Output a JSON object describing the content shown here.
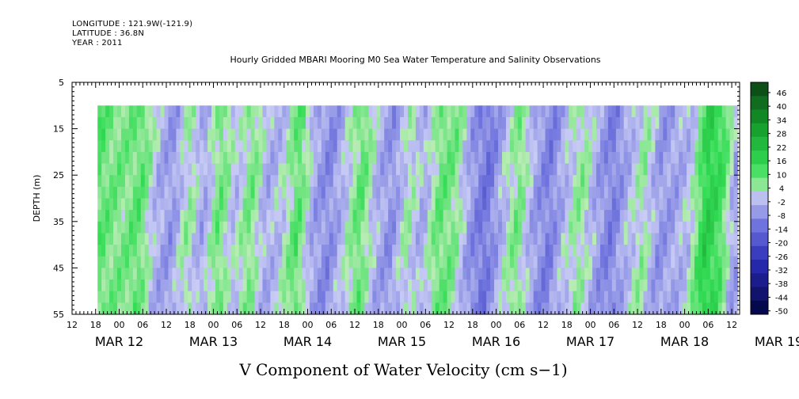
{
  "header": {
    "longitude": "LONGITUDE : 121.9W(-121.9)",
    "latitude": "LATITUDE : 36.8N",
    "year": "YEAR : 2011"
  },
  "chart_data": {
    "type": "heatmap",
    "title": "Hourly Gridded MBARI Mooring M0 Sea Water Temperature and Salinity Observations",
    "xlabel": "V Component of Water Velocity (cm s−1)",
    "ylabel": "DEPTH (m)",
    "ylim": [
      5,
      55
    ],
    "y_inverted": true,
    "y_ticks": [
      "5",
      "15",
      "25",
      "35",
      "45",
      "55"
    ],
    "x_hour_ticks": [
      "12",
      "18",
      "00",
      "06",
      "12",
      "18",
      "00",
      "06",
      "12",
      "18",
      "00",
      "06",
      "12",
      "18",
      "00",
      "06",
      "12",
      "18",
      "00",
      "06",
      "12",
      "18",
      "00",
      "06",
      "12",
      "18",
      "00",
      "06",
      "12"
    ],
    "x_date_labels": [
      "MAR 12",
      "MAR 13",
      "MAR 14",
      "MAR 15",
      "MAR 16",
      "MAR 17",
      "MAR 18",
      "MAR 19"
    ],
    "x_range_hours": [
      0,
      170
    ],
    "data_start_hour": 6.5,
    "data_end_hour": 169,
    "depth_range_of_data": [
      10,
      55
    ],
    "colorbar": {
      "levels": [
        "46",
        "40",
        "34",
        "28",
        "22",
        "16",
        "10",
        "4",
        "-2",
        "-8",
        "-14",
        "-20",
        "-26",
        "-32",
        "-38",
        "-44",
        "-50"
      ],
      "min": -50,
      "max": 50
    },
    "value_profile": [
      {
        "t": 6.5,
        "v": 9
      },
      {
        "t": 10,
        "v": 6
      },
      {
        "t": 14,
        "v": 5
      },
      {
        "t": 18,
        "v": 8
      },
      {
        "t": 22,
        "v": -4
      },
      {
        "t": 26,
        "v": -8
      },
      {
        "t": 30,
        "v": 3
      },
      {
        "t": 34,
        "v": -6
      },
      {
        "t": 38,
        "v": 7
      },
      {
        "t": 42,
        "v": -3
      },
      {
        "t": 46,
        "v": 6
      },
      {
        "t": 50,
        "v": -5
      },
      {
        "t": 54,
        "v": -2
      },
      {
        "t": 58,
        "v": 9
      },
      {
        "t": 62,
        "v": -6
      },
      {
        "t": 66,
        "v": -10
      },
      {
        "t": 70,
        "v": -2
      },
      {
        "t": 74,
        "v": 8
      },
      {
        "t": 78,
        "v": -4
      },
      {
        "t": 82,
        "v": -9
      },
      {
        "t": 86,
        "v": 2
      },
      {
        "t": 90,
        "v": -5
      },
      {
        "t": 94,
        "v": 7
      },
      {
        "t": 98,
        "v": 5
      },
      {
        "t": 102,
        "v": -8
      },
      {
        "t": 106,
        "v": -14
      },
      {
        "t": 110,
        "v": -4
      },
      {
        "t": 114,
        "v": 6
      },
      {
        "t": 118,
        "v": -6
      },
      {
        "t": 122,
        "v": -12
      },
      {
        "t": 126,
        "v": -3
      },
      {
        "t": 130,
        "v": 4
      },
      {
        "t": 134,
        "v": -6
      },
      {
        "t": 138,
        "v": -12
      },
      {
        "t": 142,
        "v": -4
      },
      {
        "t": 146,
        "v": 3
      },
      {
        "t": 150,
        "v": -8
      },
      {
        "t": 154,
        "v": -6
      },
      {
        "t": 158,
        "v": -2
      },
      {
        "t": 162,
        "v": 16
      },
      {
        "t": 166,
        "v": 10
      },
      {
        "t": 169,
        "v": -6
      }
    ],
    "grid": false
  },
  "colors": {
    "positive_max": "#0b3d12",
    "near_zero_pos": "#b9ecb5",
    "near_zero_neg": "#c9cdf4",
    "negative_max": "#06084e",
    "frame": "#000000"
  }
}
